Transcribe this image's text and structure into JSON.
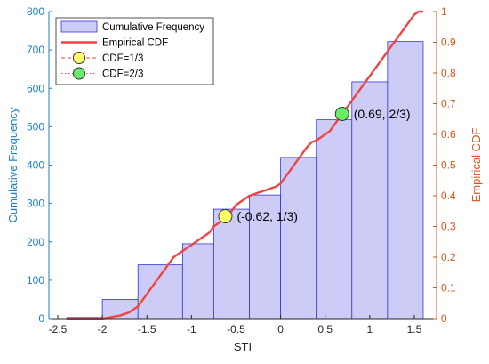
{
  "chart_data": {
    "type": "bar",
    "title": "",
    "xlabel": "STI",
    "ylabel_left": "Cumulative Frequency",
    "ylabel_right": "Empirical CDF",
    "xlim": [
      -2.6,
      1.75
    ],
    "ylim_left": [
      0,
      800
    ],
    "ylim_right": [
      0,
      1
    ],
    "x_ticks": [
      -2.5,
      -2,
      -1.5,
      -1,
      -0.5,
      0,
      0.5,
      1,
      1.5
    ],
    "x_tick_labels": [
      "-2.5",
      "-2",
      "-1.5",
      "-1",
      "-0.5",
      "0",
      "0.5",
      "1",
      "1.5"
    ],
    "y_left_ticks": [
      0,
      100,
      200,
      300,
      400,
      500,
      600,
      700,
      800
    ],
    "y_left_tick_labels": [
      "0",
      "100",
      "200",
      "300",
      "400",
      "500",
      "600",
      "700",
      "800"
    ],
    "y_right_ticks": [
      0,
      0.1,
      0.2,
      0.3,
      0.4,
      0.5,
      0.6,
      0.7,
      0.8,
      0.9,
      1
    ],
    "y_right_tick_labels": [
      "0",
      "0.1",
      "0.2",
      "0.3",
      "0.4",
      "0.5",
      "0.6",
      "0.7",
      "0.8",
      "0.9",
      "1"
    ],
    "bin_edges": [
      -2.4,
      -2.0,
      -1.6,
      -1.1,
      -0.75,
      -0.35,
      0.0,
      0.4,
      0.8,
      1.2,
      1.6
    ],
    "histogram": {
      "name": "Cumulative Frequency",
      "values": [
        3,
        50,
        140,
        195,
        285,
        322,
        420,
        518,
        617,
        722
      ],
      "fill": "#ccccf6",
      "edge": "#3333e0"
    },
    "cdf_line": {
      "name": "Empirical CDF",
      "color": "#ee4444",
      "x": [
        -2.4,
        -2.0,
        -1.9,
        -1.8,
        -1.7,
        -1.6,
        -1.55,
        -1.5,
        -1.45,
        -1.4,
        -1.35,
        -1.3,
        -1.25,
        -1.2,
        -1.15,
        -1.1,
        -1.05,
        -1.0,
        -0.95,
        -0.9,
        -0.85,
        -0.8,
        -0.75,
        -0.7,
        -0.65,
        -0.62,
        -0.55,
        -0.5,
        -0.45,
        -0.4,
        -0.35,
        -0.3,
        -0.25,
        -0.2,
        -0.15,
        -0.1,
        -0.05,
        0.0,
        0.05,
        0.1,
        0.15,
        0.2,
        0.25,
        0.3,
        0.35,
        0.4,
        0.45,
        0.5,
        0.55,
        0.6,
        0.69,
        0.75,
        0.8,
        0.85,
        0.9,
        0.95,
        1.0,
        1.05,
        1.1,
        1.15,
        1.2,
        1.25,
        1.3,
        1.35,
        1.4,
        1.45,
        1.5,
        1.55,
        1.6
      ],
      "y": [
        0.0,
        0.0,
        0.005,
        0.01,
        0.02,
        0.04,
        0.06,
        0.08,
        0.1,
        0.12,
        0.14,
        0.16,
        0.18,
        0.2,
        0.21,
        0.22,
        0.23,
        0.24,
        0.25,
        0.26,
        0.27,
        0.28,
        0.3,
        0.31,
        0.32,
        0.333,
        0.35,
        0.37,
        0.38,
        0.39,
        0.4,
        0.405,
        0.41,
        0.415,
        0.42,
        0.425,
        0.43,
        0.44,
        0.46,
        0.48,
        0.5,
        0.52,
        0.54,
        0.56,
        0.575,
        0.58,
        0.59,
        0.6,
        0.61,
        0.63,
        0.667,
        0.69,
        0.71,
        0.73,
        0.75,
        0.77,
        0.79,
        0.81,
        0.83,
        0.85,
        0.87,
        0.89,
        0.91,
        0.93,
        0.95,
        0.97,
        0.99,
        1.0,
        1.0
      ]
    },
    "markers": [
      {
        "name": "CDF=1/3",
        "x": -0.62,
        "y": 0.3333,
        "color": "#ffff66",
        "label": "(-0.62, 1/3)"
      },
      {
        "name": "CDF=2/3",
        "x": 0.69,
        "y": 0.6667,
        "color": "#66ee66",
        "label": "(0.69, 2/3)"
      }
    ],
    "legend": {
      "placement": "top-left",
      "entries": [
        "Cumulative Frequency",
        "Empirical CDF",
        "CDF=1/3",
        "CDF=2/3"
      ]
    },
    "colors": {
      "left_axis": "#1a7fc9",
      "right_axis": "#d95319",
      "bottom_axis": "#262626"
    }
  }
}
